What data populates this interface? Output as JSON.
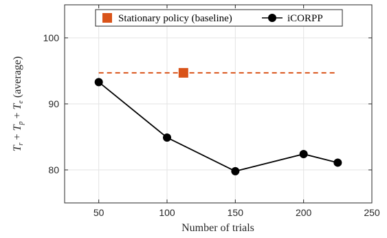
{
  "chart_data": {
    "type": "line",
    "xlabel": "Number of trials",
    "ylabel": "T_r + T_p + T_e (average)",
    "xlim": [
      25,
      250
    ],
    "ylim": [
      75,
      105
    ],
    "xticks": [
      50,
      100,
      150,
      200,
      250
    ],
    "yticks": [
      80,
      90,
      100
    ],
    "grid": true,
    "legend_position": "top",
    "series": [
      {
        "name": "Stationary policy (baseline)",
        "style": "dashed",
        "marker": "square",
        "color": "#D95319",
        "x": [
          50,
          225
        ],
        "y": [
          94.7,
          94.7
        ],
        "marker_x": 112
      },
      {
        "name": "iCORPP",
        "style": "solid",
        "marker": "circle",
        "color": "#000000",
        "x": [
          50,
          100,
          150,
          200,
          225
        ],
        "y": [
          93.3,
          84.9,
          79.8,
          82.4,
          81.1
        ]
      }
    ]
  }
}
